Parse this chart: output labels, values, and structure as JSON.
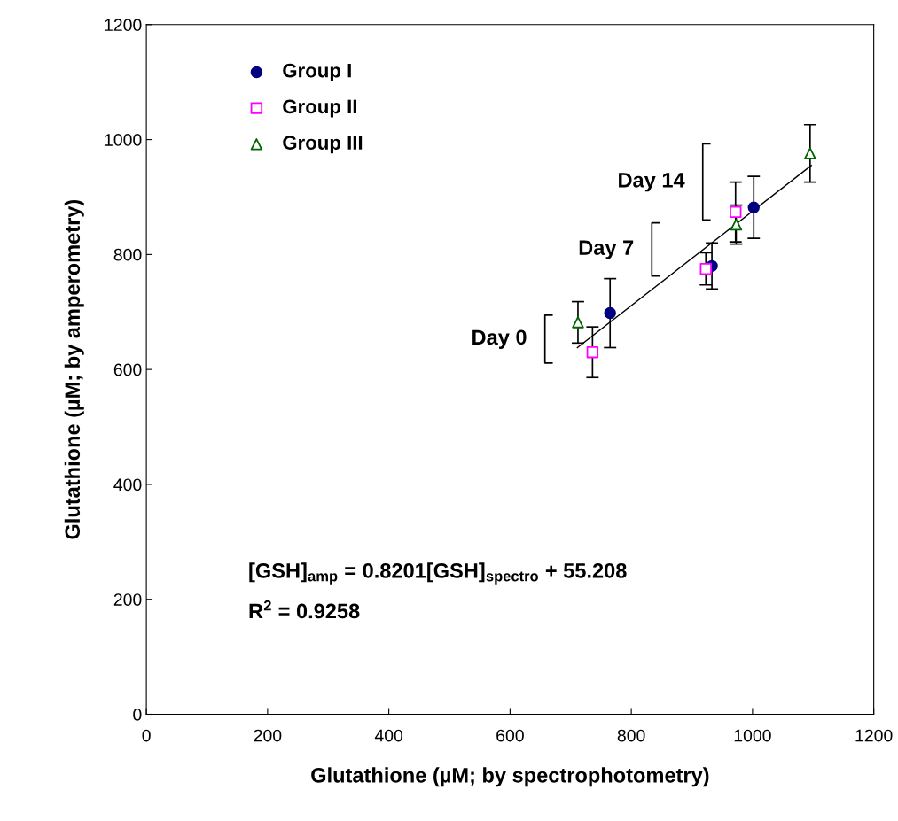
{
  "chart_data": {
    "type": "scatter",
    "xlabel": "Glutathione (µM; by spectrophotometry)",
    "ylabel": "Glutathione (µM; by amperometry)",
    "xlim": [
      0,
      1200
    ],
    "ylim": [
      0,
      1200
    ],
    "xticks": [
      0,
      200,
      400,
      600,
      800,
      1000,
      1200
    ],
    "yticks": [
      0,
      200,
      400,
      600,
      800,
      1000,
      1200
    ],
    "grid": false,
    "legend": "top left",
    "series": [
      {
        "name": "Group I",
        "color": "#000080",
        "marker": "circle",
        "x": [
          765,
          933,
          1002
        ],
        "values": [
          698,
          780,
          882
        ],
        "errors": [
          60,
          40,
          54
        ]
      },
      {
        "name": "Group II",
        "color": "#ff00ff",
        "marker": "square",
        "x": [
          736,
          923,
          972
        ],
        "values": [
          630,
          775,
          874
        ],
        "errors": [
          44,
          28,
          52
        ]
      },
      {
        "name": "Group III",
        "color": "#006400",
        "marker": "triangle",
        "x": [
          712,
          973,
          1095
        ],
        "values": [
          682,
          852,
          976
        ],
        "errors": [
          36,
          34,
          50
        ]
      },
      {
        "type": "line",
        "color": "#000000",
        "x": [
          711,
          1097
        ],
        "values": [
          638,
          955
        ]
      }
    ],
    "annotations": [
      "Day 0",
      "Day 7",
      "Day 14",
      "[GSH]$_{amp}$ = 0.8201[GSH]$_{spectro}$ + 55.208",
      "R$^{2}$ = 0.9258"
    ]
  }
}
